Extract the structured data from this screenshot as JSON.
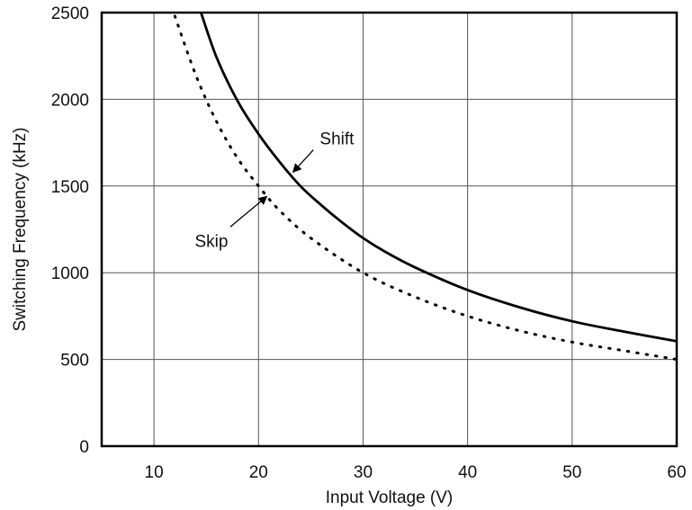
{
  "chart_data": {
    "type": "line",
    "title": "",
    "xlabel": "Input Voltage (V)",
    "ylabel": "Switching Frequency (kHz)",
    "xlim": [
      5,
      60
    ],
    "ylim": [
      0,
      2500
    ],
    "xticks": [
      10,
      20,
      30,
      40,
      50,
      60
    ],
    "yticks": [
      0,
      500,
      1000,
      1500,
      2000,
      2500
    ],
    "grid": true,
    "legend": "none",
    "series": [
      {
        "name": "Shift",
        "style": "solid",
        "color": "#000000",
        "x": [
          14.5,
          16,
          18,
          20,
          22,
          24,
          26,
          28,
          30,
          32,
          35,
          40,
          45,
          50,
          55,
          60
        ],
        "y": [
          2500,
          2240,
          1990,
          1800,
          1640,
          1500,
          1390,
          1290,
          1200,
          1125,
          1030,
          900,
          800,
          720,
          660,
          605
        ]
      },
      {
        "name": "Skip",
        "style": "dotted",
        "color": "#000000",
        "x": [
          12,
          14,
          16,
          18,
          20,
          22,
          25,
          30,
          35,
          40,
          45,
          50,
          55,
          60
        ],
        "y": [
          2480,
          2140,
          1870,
          1660,
          1500,
          1360,
          1200,
          1000,
          860,
          750,
          665,
          600,
          550,
          500
        ]
      }
    ],
    "annotations": [
      {
        "text": "Shift",
        "x": 27.5,
        "y": 1740,
        "arrow_to": [
          23.3,
          1580
        ]
      },
      {
        "text": "Skip",
        "x": 15.5,
        "y": 1150,
        "arrow_to": [
          20.8,
          1440
        ]
      }
    ]
  }
}
